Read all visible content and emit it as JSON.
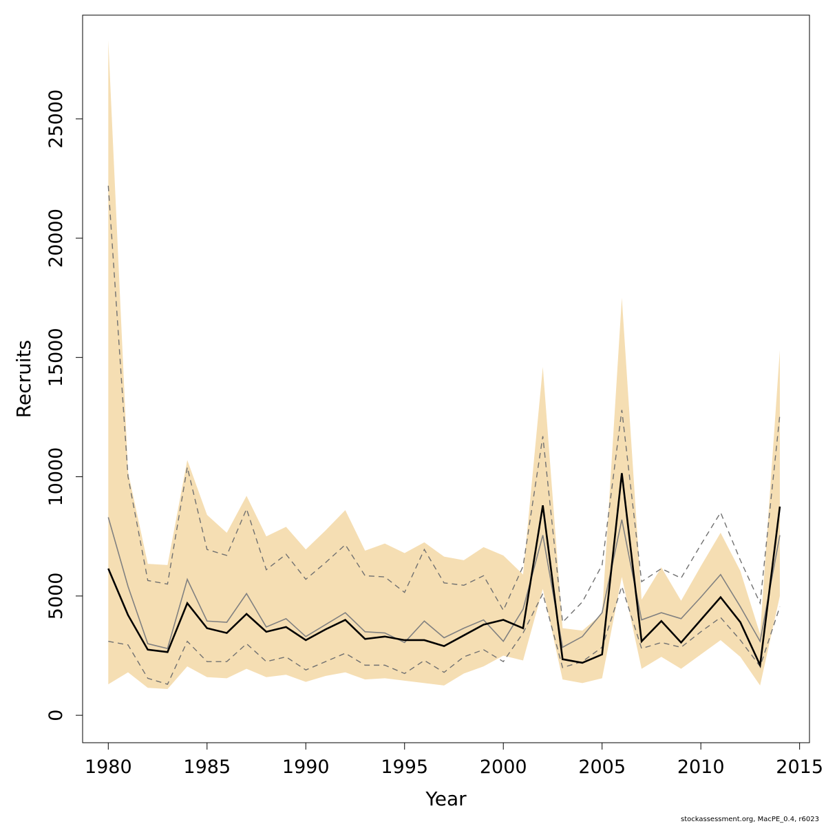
{
  "chart_data": {
    "type": "line",
    "xlabel": "Year",
    "ylabel": "Recruits",
    "xlim": [
      1978.7,
      2015.5
    ],
    "ylim": [
      -1150,
      29350
    ],
    "x_ticks": [
      1980,
      1985,
      1990,
      1995,
      2000,
      2005,
      2010,
      2015
    ],
    "y_ticks": [
      0,
      5000,
      10000,
      15000,
      20000,
      25000
    ],
    "band_color": "#f5deb3",
    "x": [
      1980,
      1981,
      1982,
      1983,
      1984,
      1985,
      1986,
      1987,
      1988,
      1989,
      1990,
      1991,
      1992,
      1993,
      1994,
      1995,
      1996,
      1997,
      1998,
      1999,
      2000,
      2001,
      2002,
      2003,
      2004,
      2005,
      2006,
      2007,
      2008,
      2009,
      2010,
      2011,
      2012,
      2013,
      2014
    ],
    "series": [
      {
        "role": "band",
        "color": "#f5deb3",
        "lower": [
          1300,
          1800,
          1150,
          1100,
          2050,
          1600,
          1550,
          1950,
          1600,
          1700,
          1400,
          1650,
          1800,
          1500,
          1550,
          1450,
          1350,
          1250,
          1750,
          2050,
          2500,
          2300,
          5300,
          1500,
          1350,
          1550,
          5800,
          1950,
          2450,
          1950,
          2550,
          3150,
          2450,
          1250,
          5000
        ],
        "upper": [
          28300,
          10200,
          6350,
          6300,
          10700,
          8400,
          7650,
          9200,
          7500,
          7900,
          6950,
          7750,
          8600,
          6900,
          7200,
          6800,
          7250,
          6650,
          6500,
          7050,
          6700,
          5900,
          14600,
          3650,
          3550,
          4250,
          17500,
          4850,
          6200,
          4800,
          6250,
          7650,
          6050,
          3400,
          15300
        ]
      },
      {
        "role": "median",
        "color": "#808080",
        "values": [
          8300,
          5400,
          3000,
          2800,
          5700,
          3950,
          3900,
          5100,
          3700,
          4050,
          3300,
          3800,
          4300,
          3500,
          3450,
          3050,
          3950,
          3250,
          3650,
          4000,
          3100,
          4450,
          7550,
          2850,
          3300,
          4300,
          8200,
          4000,
          4300,
          4050,
          4950,
          5900,
          4550,
          3100,
          7550
        ]
      },
      {
        "role": "estimate",
        "color": "#000000",
        "values": [
          6150,
          4200,
          2750,
          2650,
          4700,
          3650,
          3450,
          4250,
          3500,
          3700,
          3150,
          3600,
          4000,
          3200,
          3300,
          3150,
          3150,
          2900,
          3350,
          3800,
          4000,
          3650,
          8800,
          2350,
          2200,
          2550,
          10150,
          3100,
          3950,
          3050,
          4000,
          4950,
          3900,
          2100,
          8750
        ]
      },
      {
        "role": "lower-interval",
        "color": "#707070",
        "values": [
          3100,
          2950,
          1550,
          1300,
          3100,
          2250,
          2250,
          3000,
          2250,
          2450,
          1900,
          2250,
          2600,
          2100,
          2100,
          1750,
          2300,
          1800,
          2450,
          2750,
          2250,
          3450,
          5100,
          2000,
          2250,
          2850,
          5400,
          2800,
          3050,
          2850,
          3500,
          4100,
          3150,
          2050,
          4550
        ]
      },
      {
        "role": "upper-interval",
        "color": "#707070",
        "values": [
          22200,
          10000,
          5650,
          5500,
          10400,
          6950,
          6700,
          8650,
          6100,
          6750,
          5700,
          6400,
          7150,
          5850,
          5800,
          5150,
          6950,
          5550,
          5450,
          5850,
          4400,
          6250,
          11700,
          3900,
          4750,
          6300,
          12800,
          5600,
          6150,
          5750,
          7150,
          8500,
          6500,
          4700,
          12600
        ]
      }
    ]
  },
  "footer": {
    "credit": "stockassessment.org, MacPE_0.4, r6023"
  }
}
